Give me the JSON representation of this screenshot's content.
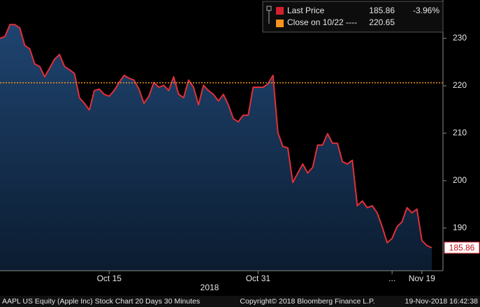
{
  "chart_data": {
    "type": "line",
    "categories": [
      null,
      null,
      null,
      null,
      null,
      null,
      null,
      null,
      null,
      null,
      null,
      null,
      null,
      null,
      null,
      null,
      null,
      null,
      null,
      null,
      null,
      null,
      "Oct 15",
      null,
      null,
      null,
      null,
      null,
      null,
      null,
      null,
      null,
      null,
      null,
      null,
      null,
      null,
      null,
      null,
      null,
      null,
      null,
      null,
      null,
      null,
      null,
      null,
      null,
      null,
      null,
      null,
      null,
      "Oct 31",
      null,
      null,
      null,
      null,
      null,
      null,
      null,
      null,
      null,
      null,
      null,
      null,
      null,
      null,
      null,
      null,
      null,
      null,
      null,
      null,
      null,
      null,
      null,
      null,
      null,
      null,
      "...",
      null,
      null,
      null,
      null,
      null,
      "Nov 19",
      null,
      null
    ],
    "xlabel": "2018",
    "series": [
      {
        "name": "Last Price",
        "color": "#e0303a",
        "change_label": "-3.96%",
        "values": [
          230.0,
          230.4,
          232.9,
          232.9,
          232.2,
          228.5,
          227.8,
          224.6,
          224.1,
          221.9,
          223.7,
          225.6,
          226.6,
          224.1,
          223.4,
          222.6,
          217.5,
          216.3,
          214.9,
          219.0,
          219.3,
          218.2,
          217.8,
          219.0,
          220.7,
          222.2,
          221.6,
          221.2,
          219.3,
          216.3,
          217.8,
          220.7,
          219.7,
          220.1,
          219.0,
          221.9,
          218.2,
          217.5,
          221.2,
          219.7,
          216.0,
          220.1,
          219.0,
          218.2,
          216.8,
          218.2,
          216.0,
          213.1,
          212.4,
          213.8,
          213.8,
          219.7,
          219.7,
          219.7,
          220.4,
          222.2,
          210.1,
          207.2,
          206.9,
          199.6,
          201.6,
          203.5,
          201.6,
          202.8,
          207.5,
          207.5,
          209.9,
          207.9,
          207.9,
          204.0,
          203.5,
          204.3,
          194.7,
          195.7,
          194.3,
          194.7,
          193.2,
          190.3,
          186.9,
          187.8,
          190.3,
          191.3,
          194.3,
          193.2,
          194.0,
          187.4,
          186.3,
          185.86
        ]
      }
    ],
    "reference_lines": [
      {
        "name": "Close on 10/22 ----",
        "value": 220.65,
        "color": "#f7941d"
      }
    ],
    "ylim": [
      181,
      238.1
    ],
    "yticks": [
      190,
      200,
      210,
      220,
      230
    ],
    "footer": {
      "left": "AAPL US Equity (Apple Inc) Stock Chart 20 Days 30 Minutes",
      "center": "Copyright© 2018 Bloomberg Finance L.P.",
      "right": "19-Nov-2018 16:42:38"
    }
  }
}
